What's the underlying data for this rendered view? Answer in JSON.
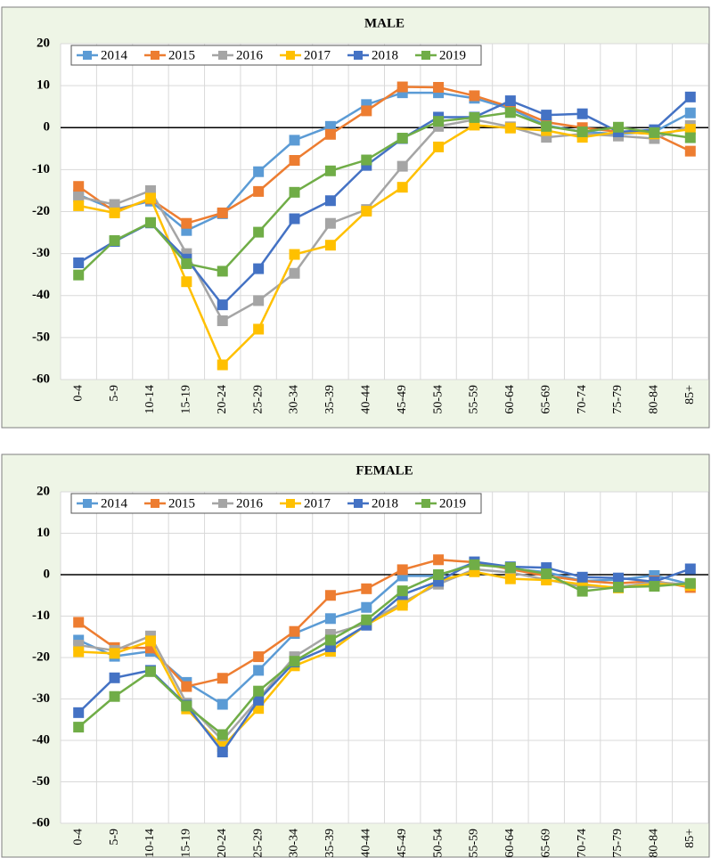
{
  "chart_data": [
    {
      "type": "line",
      "title": "MALE",
      "categories": [
        "0-4",
        "5-9",
        "10-14",
        "15-19",
        "20-24",
        "25-29",
        "30-34",
        "35-39",
        "40-44",
        "45-49",
        "50-54",
        "55-59",
        "60-64",
        "65-69",
        "70-74",
        "75-79",
        "80-84",
        "85+"
      ],
      "series": [
        {
          "name": "2014",
          "color": "#5b9bd5",
          "values": [
            -16,
            -19.5,
            -17.5,
            -24.5,
            -20.5,
            -10.5,
            -3,
            0.3,
            5.5,
            8.3,
            8.3,
            7,
            4.5,
            0.5,
            -1,
            -1.5,
            -1,
            3.5
          ]
        },
        {
          "name": "2015",
          "color": "#ed7d31",
          "values": [
            -14,
            -20,
            -17,
            -22.8,
            -20.3,
            -15.2,
            -7.8,
            -1.6,
            4,
            9.7,
            9.6,
            7.6,
            4.9,
            1.3,
            0,
            -1,
            -1.5,
            -5.6
          ]
        },
        {
          "name": "2016",
          "color": "#a5a5a5",
          "values": [
            -16.5,
            -18.3,
            -15,
            -30,
            -46,
            -41.2,
            -34.7,
            -22.8,
            -19.5,
            -9.2,
            0.3,
            1.9,
            0.2,
            -2.3,
            -1.5,
            -2,
            -2.6,
            0.5
          ]
        },
        {
          "name": "2017",
          "color": "#ffc000",
          "values": [
            -18.6,
            -20.3,
            -16.8,
            -36.7,
            -56.5,
            -48,
            -30.2,
            -28,
            -19.9,
            -14.2,
            -4.6,
            0.6,
            -0.1,
            -0.7,
            -2.3,
            -1,
            -1.5,
            -0.4
          ]
        },
        {
          "name": "2018",
          "color": "#4472c4",
          "values": [
            -32.2,
            -27.1,
            -22.7,
            -31.3,
            -42.2,
            -33.6,
            -21.7,
            -17.4,
            -9,
            -2.6,
            2.5,
            2.5,
            6.4,
            3,
            3.3,
            -1,
            -0.5,
            7.3
          ]
        },
        {
          "name": "2019",
          "color": "#70ad47",
          "values": [
            -35.1,
            -26.9,
            -22.6,
            -32.4,
            -34.2,
            -24.9,
            -15.4,
            -10.3,
            -7.7,
            -2.5,
            1.5,
            2.4,
            3.6,
            0.3,
            -1,
            0.1,
            -1.2,
            -2.4
          ]
        }
      ],
      "ylim": [
        -60,
        20
      ],
      "yticks": [
        -60,
        -50,
        -40,
        -30,
        -20,
        -10,
        0,
        10,
        20
      ],
      "grid": true,
      "legend": "upper left"
    },
    {
      "type": "line",
      "title": "FEMALE",
      "categories": [
        "0-4",
        "5-9",
        "10-14",
        "15-19",
        "20-24",
        "25-29",
        "30-34",
        "35-39",
        "40-44",
        "45-49",
        "50-54",
        "55-59",
        "60-64",
        "65-69",
        "70-74",
        "75-79",
        "80-84",
        "85+"
      ],
      "series": [
        {
          "name": "2014",
          "color": "#5b9bd5",
          "values": [
            -15.8,
            -19.7,
            -18.5,
            -26,
            -31.3,
            -23.1,
            -14.2,
            -10.6,
            -7.9,
            -0.3,
            -0.3,
            2.9,
            1.5,
            0.6,
            -1.5,
            -1.2,
            -0.2,
            -2.3
          ]
        },
        {
          "name": "2015",
          "color": "#ed7d31",
          "values": [
            -11.5,
            -17.6,
            -17.7,
            -27,
            -25,
            -19.8,
            -13.7,
            -5,
            -3.4,
            1.2,
            3.6,
            3,
            1.3,
            -0.3,
            -1.5,
            -2.1,
            -1.5,
            -3.1
          ]
        },
        {
          "name": "2016",
          "color": "#a5a5a5",
          "values": [
            -17,
            -18.3,
            -14.8,
            -31,
            -40,
            -30,
            -19.8,
            -14.4,
            -11.8,
            -6.7,
            -2.3,
            1.3,
            0.5,
            -1.2,
            -2.9,
            -3,
            -1.8,
            -2.4
          ]
        },
        {
          "name": "2017",
          "color": "#ffc000",
          "values": [
            -18.6,
            -19,
            -16,
            -32.4,
            -41.5,
            -32.3,
            -22,
            -18.5,
            -12.1,
            -7.4,
            -1.5,
            0.7,
            -1,
            -1.3,
            -2.3,
            -3.2,
            -2.2,
            -2.6
          ]
        },
        {
          "name": "2018",
          "color": "#4472c4",
          "values": [
            -33.3,
            -24.9,
            -23.1,
            -31.5,
            -42.8,
            -30.3,
            -21.1,
            -17.4,
            -12.2,
            -4.8,
            -1.6,
            3.1,
            1.9,
            1.7,
            -0.6,
            -0.8,
            -1.7,
            1.4
          ]
        },
        {
          "name": "2019",
          "color": "#70ad47",
          "values": [
            -36.8,
            -29.4,
            -23.4,
            -31.7,
            -38.6,
            -28.1,
            -20.9,
            -15.8,
            -10.9,
            -3.9,
            0,
            2.4,
            1.7,
            0.2,
            -4,
            -3,
            -2.8,
            -2.1
          ]
        }
      ],
      "ylim": [
        -60,
        20
      ],
      "yticks": [
        -60,
        -50,
        -40,
        -30,
        -20,
        -10,
        0,
        10,
        20
      ],
      "grid": true,
      "legend": "upper left"
    }
  ]
}
